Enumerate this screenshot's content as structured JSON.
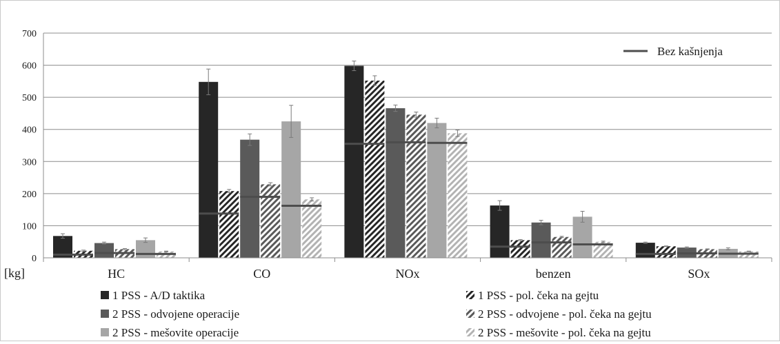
{
  "chart_data": {
    "type": "bar",
    "unit_label": "[kg]",
    "categories": [
      "HC",
      "CO",
      "NOx",
      "benzen",
      "SOx"
    ],
    "ylim": [
      0,
      700
    ],
    "yticks": [
      "0",
      "100",
      "200",
      "300",
      "400",
      "500",
      "600",
      "700"
    ],
    "grid": true,
    "legend_position": "bottom",
    "series": [
      {
        "name": "1 PSS - A/D taktika",
        "color": "#262626",
        "pattern": "solid",
        "values": [
          68,
          548,
          598,
          163,
          47
        ],
        "errors": [
          7,
          40,
          15,
          15,
          2
        ]
      },
      {
        "name": "1 PSS - pol. čeka na gejtu",
        "color": "#262626",
        "pattern": "hatch",
        "values": [
          22,
          208,
          552,
          55,
          36
        ],
        "errors": [
          2,
          5,
          15,
          2,
          1
        ]
      },
      {
        "name": "2 PSS - odvojene operacije",
        "color": "#5a5a5a",
        "pattern": "solid",
        "values": [
          46,
          368,
          466,
          110,
          32
        ],
        "errors": [
          3,
          18,
          10,
          7,
          2
        ]
      },
      {
        "name": "2 PSS - odvojene - pol. čeka na gejtu",
        "color": "#5a5a5a",
        "pattern": "hatch",
        "values": [
          27,
          229,
          446,
          65,
          27
        ],
        "errors": [
          2,
          5,
          8,
          2,
          1
        ]
      },
      {
        "name": "2 PSS - mešovite operacije",
        "color": "#a6a6a6",
        "pattern": "solid",
        "values": [
          55,
          425,
          420,
          128,
          28
        ],
        "errors": [
          7,
          50,
          15,
          17,
          3
        ]
      },
      {
        "name": "2 PSS - mešovite - pol. čeka na gejtu",
        "color": "#b3b3b3",
        "pattern": "hatch",
        "values": [
          20,
          182,
          388,
          50,
          20
        ],
        "errors": [
          1,
          5,
          10,
          2,
          1
        ]
      }
    ],
    "reference_line": {
      "name": "Bez kašnjenja",
      "color": "#4d4d4d",
      "values": [
        [
          10,
          15,
          12
        ],
        [
          138,
          190,
          162
        ],
        [
          355,
          360,
          358
        ],
        [
          35,
          48,
          42
        ],
        [
          12,
          14,
          13
        ]
      ]
    }
  }
}
